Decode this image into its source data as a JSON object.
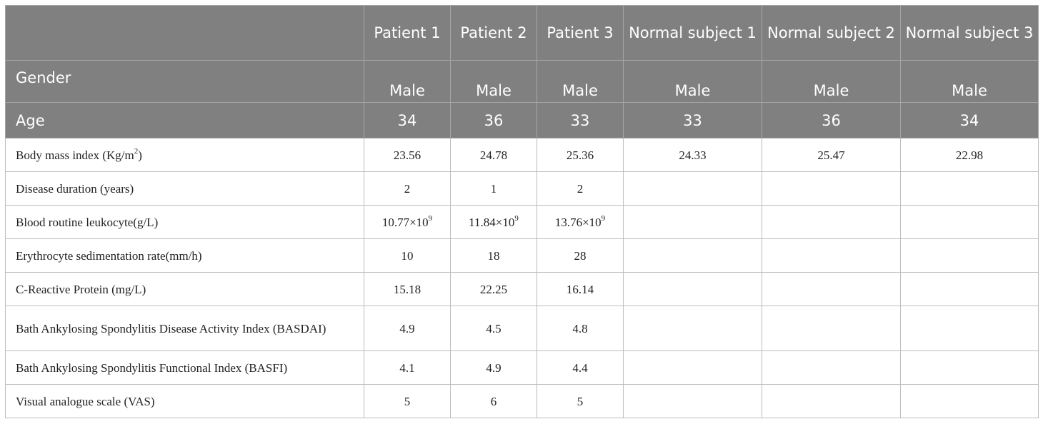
{
  "header": {
    "corner": "",
    "columns": [
      "Patient 1",
      "Patient 2",
      "Patient 3",
      "Normal subject 1",
      "Normal subject 2",
      "Normal subject 3"
    ]
  },
  "gender": {
    "label": "Gender",
    "values": [
      "Male",
      "Male",
      "Male",
      "Male",
      "Male",
      "Male"
    ]
  },
  "age": {
    "label": "Age",
    "values": [
      "34",
      "36",
      "33",
      "33",
      "36",
      "34"
    ]
  },
  "rows": [
    {
      "label": "Body mass index (Kg/m",
      "label_sup": "2",
      "label_tail": ")",
      "values": [
        "23.56",
        "24.78",
        "25.36",
        "24.33",
        "25.47",
        "22.98"
      ]
    },
    {
      "label": "Disease duration (years)",
      "values": [
        "2",
        "1",
        "2",
        "",
        "",
        ""
      ]
    },
    {
      "label": "Blood routine leukocyte(g/L)",
      "values": [
        "10.77×10",
        "11.84×10",
        "13.76×10",
        "",
        "",
        ""
      ],
      "value_sups": [
        "9",
        "9",
        "9",
        "",
        "",
        ""
      ]
    },
    {
      "label": "Erythrocyte sedimentation rate(mm/h)",
      "values": [
        "10",
        "18",
        "28",
        "",
        "",
        ""
      ]
    },
    {
      "label": "C-Reactive Protein (mg/L)",
      "values": [
        "15.18",
        "22.25",
        "16.14",
        "",
        "",
        ""
      ]
    },
    {
      "label": "Bath Ankylosing Spondylitis Disease Activity Index (BASDAI)",
      "values": [
        "4.9",
        "4.5",
        "4.8",
        "",
        "",
        ""
      ]
    },
    {
      "label": "Bath Ankylosing Spondylitis Functional Index (BASFI)",
      "values": [
        "4.1",
        "4.9",
        "4.4",
        "",
        "",
        ""
      ]
    },
    {
      "label": "Visual analogue scale (VAS)",
      "values": [
        "5",
        "6",
        "5",
        "",
        "",
        ""
      ]
    }
  ]
}
